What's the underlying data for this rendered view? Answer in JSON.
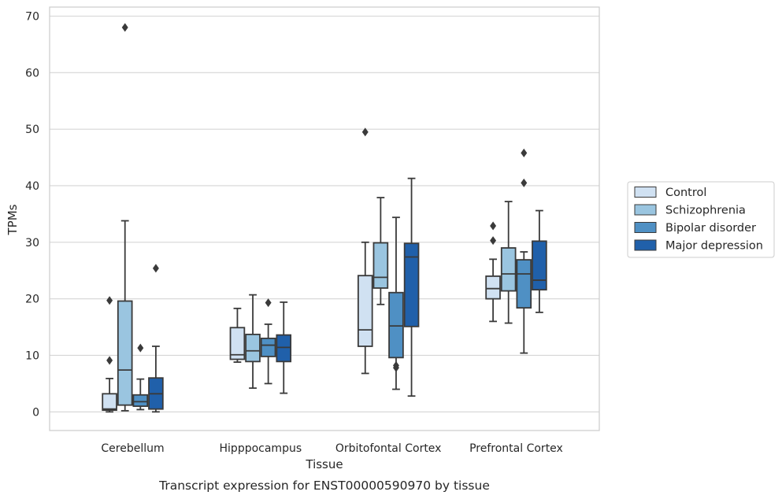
{
  "caption": "Transcript expression for ENST00000590970 by tissue",
  "chart_data": {
    "type": "box",
    "xlabel": "Tissue",
    "ylabel": "TPMs",
    "ylim": [
      -3.3,
      71.6
    ],
    "yticks": [
      0,
      10,
      20,
      30,
      40,
      50,
      60,
      70
    ],
    "grid": "horizontal",
    "legend_position": "right",
    "categories": [
      "Cerebellum",
      "Hipppocampus",
      "Orbitofontal Cortex",
      "Prefrontal Cortex"
    ],
    "series": [
      {
        "name": "Control",
        "color": "#d0e1f2",
        "boxes": [
          {
            "whislo": 0.0,
            "q1": 0.3,
            "med": 0.5,
            "q3": 3.2,
            "whishi": 5.9,
            "fliers": [
              9.1,
              19.7
            ]
          },
          {
            "whislo": 8.8,
            "q1": 9.3,
            "med": 10.1,
            "q3": 14.9,
            "whishi": 18.3,
            "fliers": []
          },
          {
            "whislo": 6.8,
            "q1": 11.6,
            "med": 14.5,
            "q3": 24.1,
            "whishi": 30.0,
            "fliers": [
              49.5
            ]
          },
          {
            "whislo": 16.0,
            "q1": 20.0,
            "med": 21.8,
            "q3": 24.0,
            "whishi": 27.0,
            "fliers": [
              30.3,
              32.9
            ]
          }
        ]
      },
      {
        "name": "Schizophrenia",
        "color": "#9ac5e0",
        "boxes": [
          {
            "whislo": 0.2,
            "q1": 1.2,
            "med": 7.4,
            "q3": 19.6,
            "whishi": 33.8,
            "fliers": [
              68.0
            ]
          },
          {
            "whislo": 4.2,
            "q1": 8.9,
            "med": 10.8,
            "q3": 13.7,
            "whishi": 20.7,
            "fliers": []
          },
          {
            "whislo": 19.0,
            "q1": 21.9,
            "med": 23.8,
            "q3": 29.9,
            "whishi": 37.9,
            "fliers": []
          },
          {
            "whislo": 15.7,
            "q1": 21.4,
            "med": 24.4,
            "q3": 29.0,
            "whishi": 37.2,
            "fliers": []
          }
        ]
      },
      {
        "name": "Bipolar disorder",
        "color": "#4f90c4",
        "boxes": [
          {
            "whislo": 0.4,
            "q1": 1.0,
            "med": 1.8,
            "q3": 3.0,
            "whishi": 5.8,
            "fliers": [
              11.3
            ]
          },
          {
            "whislo": 5.0,
            "q1": 9.8,
            "med": 11.8,
            "q3": 13.0,
            "whishi": 15.5,
            "fliers": [
              19.3
            ]
          },
          {
            "whislo": 4.0,
            "q1": 9.6,
            "med": 15.2,
            "q3": 21.1,
            "whishi": 34.4,
            "fliers": [
              7.8,
              8.2
            ]
          },
          {
            "whislo": 10.4,
            "q1": 18.4,
            "med": 24.4,
            "q3": 26.9,
            "whishi": 28.3,
            "fliers": [
              40.5,
              45.8
            ]
          }
        ]
      },
      {
        "name": "Major depression",
        "color": "#2060aa",
        "boxes": [
          {
            "whislo": 0.0,
            "q1": 0.5,
            "med": 3.2,
            "q3": 6.0,
            "whishi": 11.6,
            "fliers": [
              25.4
            ]
          },
          {
            "whislo": 3.3,
            "q1": 8.9,
            "med": 11.4,
            "q3": 13.6,
            "whishi": 19.4,
            "fliers": []
          },
          {
            "whislo": 2.8,
            "q1": 15.1,
            "med": 27.4,
            "q3": 29.8,
            "whishi": 41.3,
            "fliers": []
          },
          {
            "whislo": 17.6,
            "q1": 21.6,
            "med": 23.3,
            "q3": 30.2,
            "whishi": 35.6,
            "fliers": []
          }
        ]
      }
    ]
  }
}
